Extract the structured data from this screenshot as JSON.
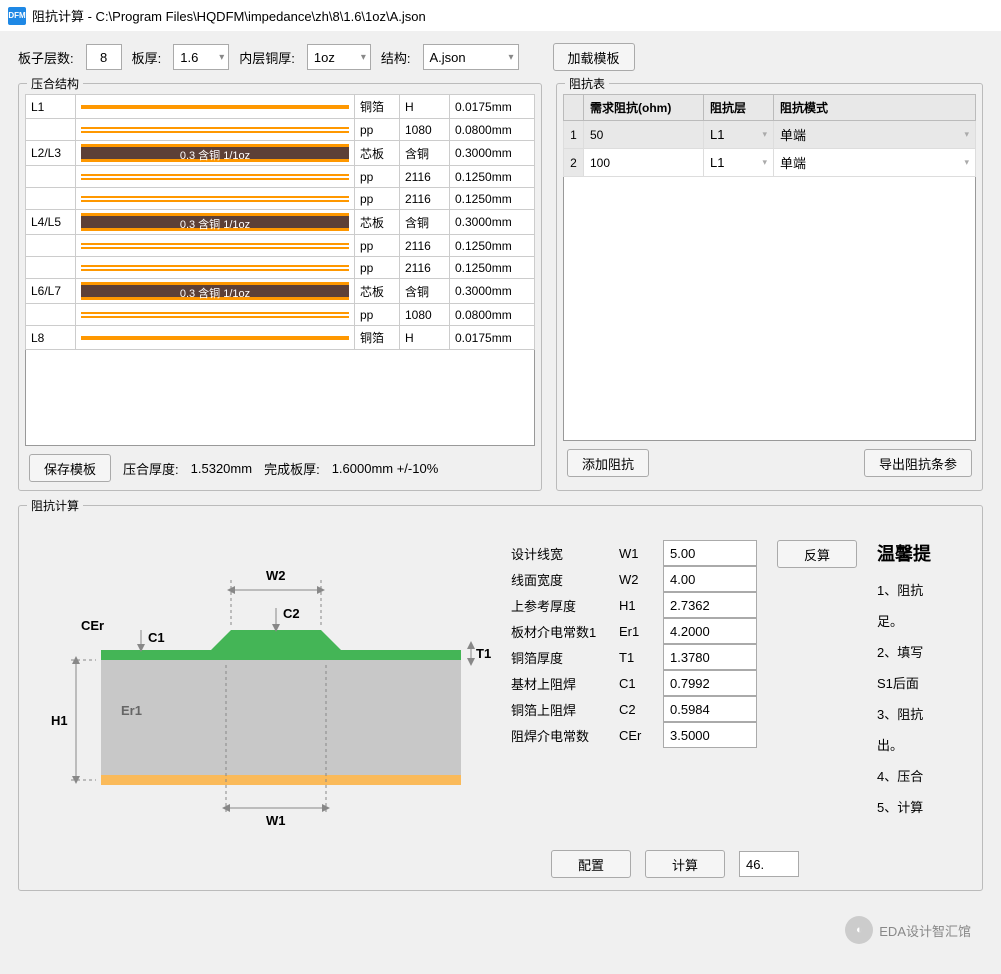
{
  "window": {
    "icon_text": "DFM",
    "title": "阻抗计算 - C:\\Program Files\\HQDFM\\impedance\\zh\\8\\1.6\\1oz\\A.json"
  },
  "toolbar": {
    "layers_label": "板子层数:",
    "layers_value": "8",
    "thickness_label": "板厚:",
    "thickness_value": "1.6",
    "inner_cu_label": "内层铜厚:",
    "inner_cu_value": "1oz",
    "struct_label": "结构:",
    "struct_value": "A.json",
    "load_template": "加载模板"
  },
  "stackup": {
    "title": "压合结构",
    "rows": [
      {
        "name": "L1",
        "vis": "cu",
        "mat": "铜箔",
        "spec": "H",
        "thk": "0.0175mm"
      },
      {
        "name": "",
        "vis": "pp",
        "mat": "pp",
        "spec": "1080",
        "thk": "0.0800mm"
      },
      {
        "name": "L2/L3",
        "vis": "core",
        "core_text": "0.3 含铜 1/1oz",
        "mat": "芯板",
        "spec": "含铜",
        "thk": "0.3000mm"
      },
      {
        "name": "",
        "vis": "pp",
        "mat": "pp",
        "spec": "2116",
        "thk": "0.1250mm"
      },
      {
        "name": "",
        "vis": "pp",
        "mat": "pp",
        "spec": "2116",
        "thk": "0.1250mm"
      },
      {
        "name": "L4/L5",
        "vis": "core",
        "core_text": "0.3 含铜 1/1oz",
        "mat": "芯板",
        "spec": "含铜",
        "thk": "0.3000mm"
      },
      {
        "name": "",
        "vis": "pp",
        "mat": "pp",
        "spec": "2116",
        "thk": "0.1250mm"
      },
      {
        "name": "",
        "vis": "pp",
        "mat": "pp",
        "spec": "2116",
        "thk": "0.1250mm"
      },
      {
        "name": "L6/L7",
        "vis": "core",
        "core_text": "0.3 含铜 1/1oz",
        "mat": "芯板",
        "spec": "含铜",
        "thk": "0.3000mm"
      },
      {
        "name": "",
        "vis": "pp",
        "mat": "pp",
        "spec": "1080",
        "thk": "0.0800mm"
      },
      {
        "name": "L8",
        "vis": "cu",
        "mat": "铜箔",
        "spec": "H",
        "thk": "0.0175mm"
      }
    ],
    "save_template": "保存模板",
    "press_thk_label": "压合厚度:",
    "press_thk_value": "1.5320mm",
    "finish_thk_label": "完成板厚:",
    "finish_thk_value": "1.6000mm +/-10%"
  },
  "impedance": {
    "title": "阻抗表",
    "headers": {
      "req": "需求阻抗(ohm)",
      "layer": "阻抗层",
      "mode": "阻抗模式"
    },
    "rows": [
      {
        "num": "1",
        "req": "50",
        "layer": "L1",
        "mode": "单端"
      },
      {
        "num": "2",
        "req": "100",
        "layer": "L1",
        "mode": "单端"
      }
    ],
    "add": "添加阻抗",
    "export": "导出阻抗条参"
  },
  "calc": {
    "title": "阻抗计算",
    "diagram": {
      "labels": {
        "W1": "W1",
        "W2": "W2",
        "C1": "C1",
        "C2": "C2",
        "H1": "H1",
        "T1": "T1",
        "Er1": "Er1",
        "CEr": "CEr"
      },
      "colors": {
        "substrate": "#c8c8c8",
        "copper": "#faba5a",
        "mask": "#44b556",
        "dim": "#888888"
      }
    },
    "params": [
      {
        "label": "设计线宽",
        "sym": "W1",
        "val": "5.00"
      },
      {
        "label": "线面宽度",
        "sym": "W2",
        "val": "4.00"
      },
      {
        "label": "上参考厚度",
        "sym": "H1",
        "val": "2.7362"
      },
      {
        "label": "板材介电常数1",
        "sym": "Er1",
        "val": "4.2000"
      },
      {
        "label": "铜箔厚度",
        "sym": "T1",
        "val": "1.3780"
      },
      {
        "label": "基材上阻焊",
        "sym": "C1",
        "val": "0.7992"
      },
      {
        "label": "铜箔上阻焊",
        "sym": "C2",
        "val": "0.5984"
      },
      {
        "label": "阻焊介电常数",
        "sym": "CEr",
        "val": "3.5000"
      }
    ],
    "reverse": "反算",
    "tips_title": "温馨提",
    "tips": [
      "1、阻抗",
      "足。",
      "2、填写",
      "S1后面",
      "3、阻抗",
      "出。",
      "4、压合",
      "5、计算"
    ],
    "config": "配置",
    "compute": "计算",
    "result": "46."
  },
  "watermark": {
    "text": "EDA设计智汇馆"
  }
}
